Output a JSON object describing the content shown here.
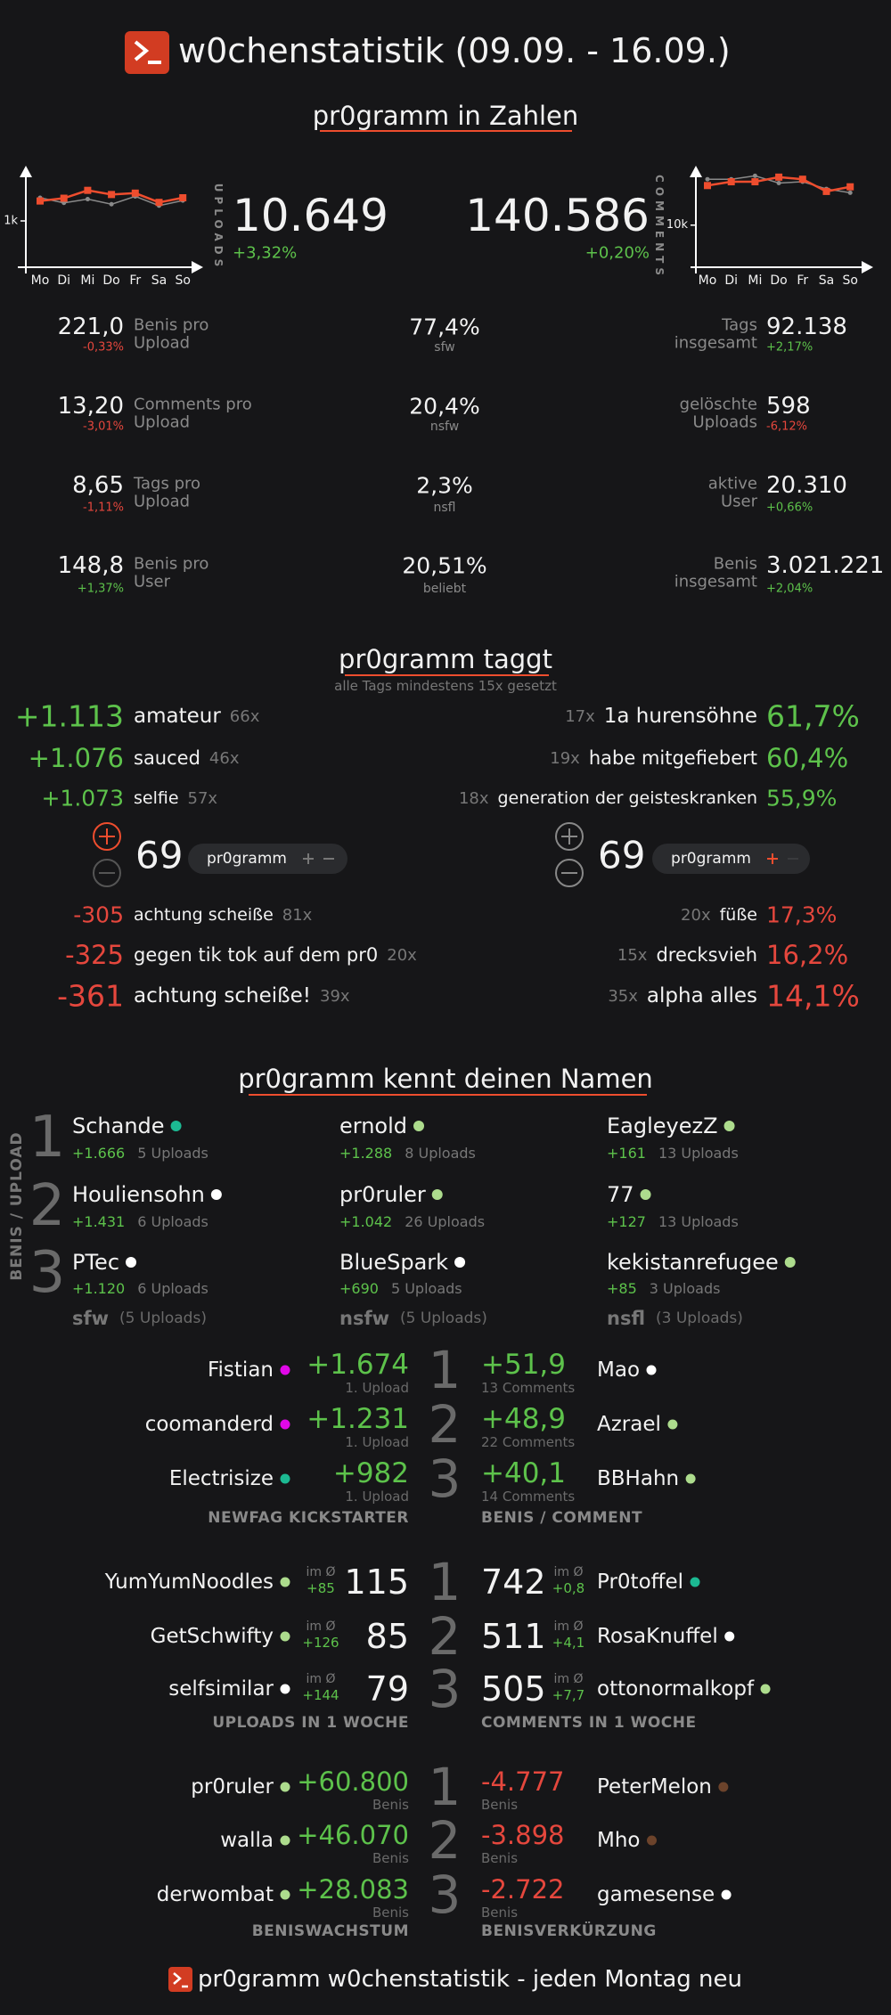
{
  "header": {
    "title": "w0chenstatistik (09.09. - 16.09.)"
  },
  "overview": {
    "title": "pr0gramm in Zahlen",
    "uploads": {
      "label": "UPLOADS",
      "value": "10.649",
      "change": "+3,32%"
    },
    "comments": {
      "label": "COMMENTS",
      "value": "140.586",
      "change": "+0,20%"
    },
    "left_stats": [
      {
        "value": "221,0",
        "change": "-0,33%",
        "label": [
          "Benis pro",
          "Upload"
        ]
      },
      {
        "value": "13,20",
        "change": "-3,01%",
        "label": [
          "Comments pro",
          "Upload"
        ]
      },
      {
        "value": "8,65",
        "change": "-1,11%",
        "label": [
          "Tags pro",
          "Upload"
        ]
      },
      {
        "value": "148,8",
        "change": "+1,37%",
        "label": [
          "Benis pro",
          "User"
        ]
      }
    ],
    "middle_stats": [
      {
        "value": "77,4%",
        "label": "sfw"
      },
      {
        "value": "20,4%",
        "label": "nsfw"
      },
      {
        "value": "2,3%",
        "label": "nsfl"
      },
      {
        "value": "20,51%",
        "label": "beliebt"
      }
    ],
    "right_stats": [
      {
        "label": [
          "Tags",
          "insgesamt"
        ],
        "value": "92.138",
        "change": "+2,17%"
      },
      {
        "label": [
          "gelöschte",
          "Uploads"
        ],
        "value": "598",
        "change": "-6,12%"
      },
      {
        "label": [
          "aktive",
          "User"
        ],
        "value": "20.310",
        "change": "+0,66%"
      },
      {
        "label": [
          "Benis",
          "insgesamt"
        ],
        "value": "3.021.221",
        "change": "+2,04%"
      }
    ]
  },
  "chart_data": [
    {
      "type": "line",
      "categories": [
        "Mo",
        "Di",
        "Mi",
        "Do",
        "Fr",
        "Sa",
        "So"
      ],
      "ylim": [
        0,
        2000
      ],
      "yticks": [
        {
          "value": 1000,
          "label": "1k"
        }
      ],
      "series": [
        {
          "color": "#ee4d2e",
          "values": [
            1430,
            1490,
            1660,
            1570,
            1600,
            1400,
            1500
          ]
        },
        {
          "color": "#8a8a8a",
          "values": [
            1500,
            1390,
            1470,
            1360,
            1530,
            1330,
            1440
          ]
        }
      ]
    },
    {
      "type": "line",
      "categories": [
        "Mo",
        "Di",
        "Mi",
        "Do",
        "Fr",
        "Sa",
        "So"
      ],
      "ylim": [
        0,
        22000
      ],
      "yticks": [
        {
          "value": 10000,
          "label": "10k"
        }
      ],
      "series": [
        {
          "color": "#ee4d2e",
          "values": [
            19400,
            20300,
            20300,
            21400,
            20900,
            18000,
            19100
          ]
        },
        {
          "color": "#8a8a8a",
          "values": [
            20900,
            20900,
            21700,
            20000,
            20300,
            18600,
            17700
          ]
        }
      ]
    }
  ],
  "tags": {
    "title": "pr0gramm taggt",
    "subtitle": "alle Tags mindestens 15x gesetzt",
    "top_left": [
      {
        "score": "+1.113",
        "tag": "amateur",
        "count": "66x"
      },
      {
        "score": "+1.076",
        "tag": "sauced",
        "count": "46x"
      },
      {
        "score": "+1.073",
        "tag": "selfie",
        "count": "57x"
      }
    ],
    "top_right": [
      {
        "count": "17x",
        "tag": "1a hurensöhne",
        "share": "61,7%"
      },
      {
        "count": "19x",
        "tag": "habe mitgefiebert",
        "share": "60,4%"
      },
      {
        "count": "18x",
        "tag": "generation der geisteskranken",
        "share": "55,9%"
      }
    ],
    "vote_left": {
      "score": "69",
      "tag": "pr0gramm"
    },
    "vote_right": {
      "score": "69",
      "tag": "pr0gramm"
    },
    "bottom_left": [
      {
        "score": "-305",
        "tag": "achtung scheiße",
        "count": "81x"
      },
      {
        "score": "-325",
        "tag": "gegen tik tok auf dem pr0",
        "count": "20x"
      },
      {
        "score": "-361",
        "tag": "achtung scheiße!",
        "count": "39x"
      }
    ],
    "bottom_right": [
      {
        "count": "20x",
        "tag": "füße",
        "share": "17,3%"
      },
      {
        "count": "15x",
        "tag": "drecksvieh",
        "share": "16,2%"
      },
      {
        "count": "35x",
        "tag": "alpha alles",
        "share": "14,1%"
      }
    ]
  },
  "names": {
    "title": "pr0gramm kennt deinen Namen",
    "side_label": "BENIS / UPLOAD",
    "ranks": [
      "1",
      "2",
      "3"
    ],
    "columns": [
      {
        "users": [
          {
            "name": "Schande",
            "color": "#1cb992",
            "benis": "+1.666",
            "uploads": "5 Uploads"
          },
          {
            "name": "Houliensohn",
            "color": "#ffffff",
            "benis": "+1.431",
            "uploads": "6 Uploads"
          },
          {
            "name": "PTec",
            "color": "#ffffff",
            "benis": "+1.120",
            "uploads": "6 Uploads"
          }
        ],
        "footer": {
          "label": "sfw",
          "uploads": "(5 Uploads)"
        }
      },
      {
        "users": [
          {
            "name": "ernold",
            "color": "#addc8d",
            "benis": "+1.288",
            "uploads": "8 Uploads"
          },
          {
            "name": "pr0ruler",
            "color": "#addc8d",
            "benis": "+1.042",
            "uploads": "26 Uploads"
          },
          {
            "name": "BlueSpark",
            "color": "#ffffff",
            "benis": "+690",
            "uploads": "5 Uploads"
          }
        ],
        "footer": {
          "label": "nsfw",
          "uploads": "(5 Uploads)"
        }
      },
      {
        "users": [
          {
            "name": "EagleyezZ",
            "color": "#addc8d",
            "benis": "+161",
            "uploads": "13 Uploads"
          },
          {
            "name": "77",
            "color": "#addc8d",
            "benis": "+127",
            "uploads": "13 Uploads"
          },
          {
            "name": "kekistanrefugee",
            "color": "#addc8d",
            "benis": "+85",
            "uploads": "3 Uploads"
          }
        ],
        "footer": {
          "label": "nsfl",
          "uploads": "(3 Uploads)"
        }
      }
    ]
  },
  "rankings": [
    {
      "left": {
        "label": "NEWFAG KICKSTARTER",
        "rows": [
          {
            "name": "Fistian",
            "color": "#e108e9",
            "value": "+1.674",
            "sub": "1. Upload"
          },
          {
            "name": "coomanderd",
            "color": "#e108e9",
            "value": "+1.231",
            "sub": "1. Upload"
          },
          {
            "name": "Electrisize",
            "color": "#1cb992",
            "value": "+982",
            "sub": "1. Upload"
          }
        ]
      },
      "right": {
        "label": "BENIS / COMMENT",
        "rows": [
          {
            "name": "Mao",
            "color": "#ffffff",
            "value": "+51,9",
            "sub": "13 Comments"
          },
          {
            "name": "Azrael",
            "color": "#addc8d",
            "value": "+48,9",
            "sub": "22 Comments"
          },
          {
            "name": "BBHahn",
            "color": "#addc8d",
            "value": "+40,1",
            "sub": "14 Comments"
          }
        ]
      }
    },
    {
      "left": {
        "label": "UPLOADS IN 1 WOCHE",
        "rows": [
          {
            "name": "YumYumNoodles",
            "color": "#addc8d",
            "value": "115",
            "avg_label": "im Ø",
            "avg": "+85"
          },
          {
            "name": "GetSchwifty",
            "color": "#addc8d",
            "value": "85",
            "avg_label": "im Ø",
            "avg": "+126"
          },
          {
            "name": "selfsimilar",
            "color": "#ffffff",
            "value": "79",
            "avg_label": "im Ø",
            "avg": "+144"
          }
        ]
      },
      "right": {
        "label": "COMMENTS IN 1 WOCHE",
        "rows": [
          {
            "name": "Pr0toffel",
            "color": "#1cb992",
            "value": "742",
            "avg_label": "im Ø",
            "avg": "+0,8"
          },
          {
            "name": "RosaKnuffel",
            "color": "#ffffff",
            "value": "511",
            "avg_label": "im Ø",
            "avg": "+4,1"
          },
          {
            "name": "ottonormalkopf",
            "color": "#addc8d",
            "value": "505",
            "avg_label": "im Ø",
            "avg": "+7,7"
          }
        ]
      }
    },
    {
      "left": {
        "label": "BENISWACHSTUM",
        "rows": [
          {
            "name": "pr0ruler",
            "color": "#addc8d",
            "value": "+60.800",
            "sub": "Benis"
          },
          {
            "name": "walla",
            "color": "#addc8d",
            "value": "+46.070",
            "sub": "Benis"
          },
          {
            "name": "derwombat",
            "color": "#addc8d",
            "value": "+28.083",
            "sub": "Benis"
          }
        ]
      },
      "right": {
        "label": "BENISVERKÜRZUNG",
        "rows": [
          {
            "name": "PeterMelon",
            "color": "#6c432b",
            "value": "-4.777",
            "sub": "Benis"
          },
          {
            "name": "Mho",
            "color": "#6c432b",
            "value": "-3.898",
            "sub": "Benis"
          },
          {
            "name": "gamesense",
            "color": "#ffffff",
            "value": "-2.722",
            "sub": "Benis"
          }
        ]
      }
    }
  ],
  "footer": {
    "text": "pr0gramm w0chenstatistik - jeden Montag neu"
  }
}
